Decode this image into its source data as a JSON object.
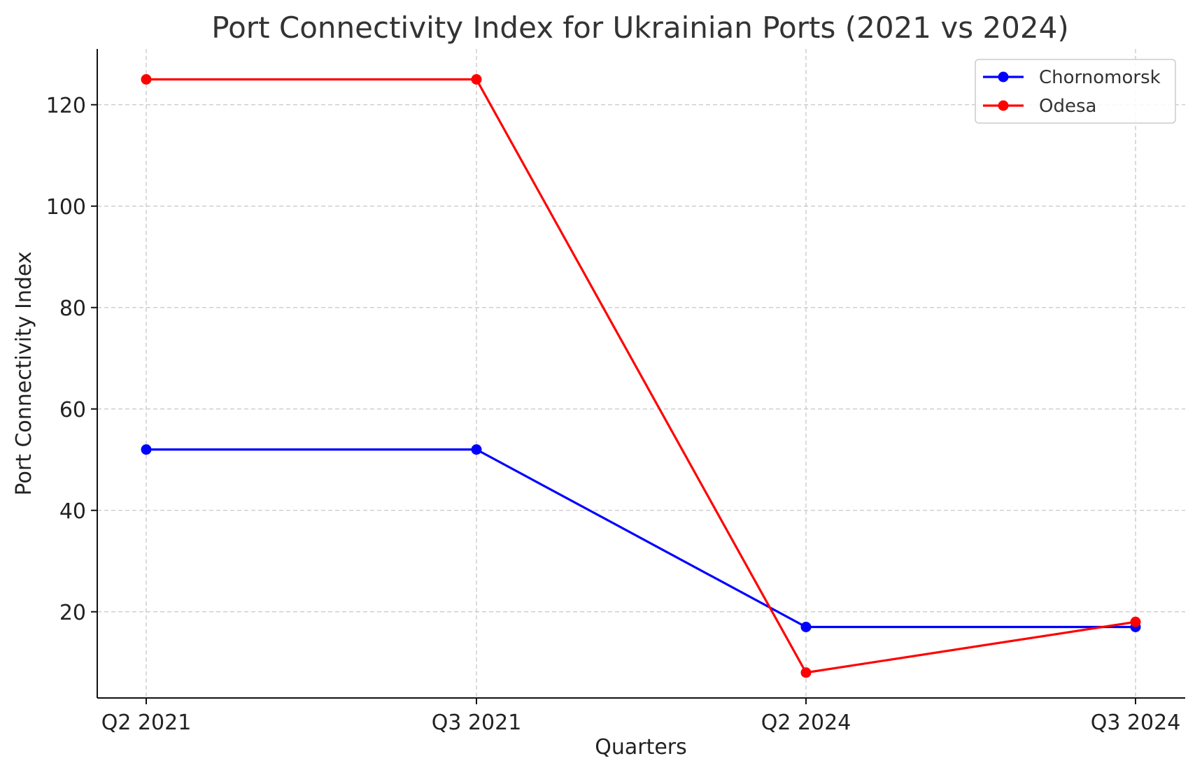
{
  "chart_data": {
    "type": "line",
    "title": "Port Connectivity Index for Ukrainian Ports (2021 vs 2024)",
    "xlabel": "Quarters",
    "ylabel": "Port Connectivity Index",
    "categories": [
      "Q2 2021",
      "Q3 2021",
      "Q2 2024",
      "Q3 2024"
    ],
    "series": [
      {
        "name": "Chornomorsk",
        "color": "#0000ff",
        "values": [
          52,
          52,
          17,
          17
        ]
      },
      {
        "name": "Odesa",
        "color": "#ff0000",
        "values": [
          125,
          125,
          8,
          18
        ]
      }
    ],
    "ylim": [
      3,
      131
    ],
    "yticks": [
      20,
      40,
      60,
      80,
      100,
      120
    ],
    "grid": true,
    "legend_position": "top-right"
  }
}
